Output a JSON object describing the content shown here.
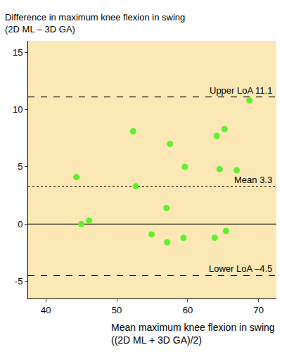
{
  "chart_data": {
    "type": "scatter",
    "x_label": "Mean maximum knee flexion in swing\n((2D ML + 3D GA)/2)",
    "y_label": "Difference in maximum knee flexion in swing\n(2D ML – 3D GA)",
    "x": [
      44.3,
      45.0,
      46.1,
      52.3,
      52.7,
      54.9,
      57.0,
      57.1,
      57.5,
      59.4,
      59.6,
      63.8,
      64.1,
      64.5,
      65.2,
      65.4,
      66.9,
      68.7
    ],
    "values": [
      4.1,
      0.0,
      0.3,
      8.1,
      3.3,
      -0.9,
      1.4,
      -1.6,
      7.0,
      -1.2,
      5.0,
      -1.2,
      7.7,
      4.8,
      8.3,
      -0.6,
      4.7,
      10.8
    ],
    "color": "#5ff02f",
    "marker": "circle",
    "xlim": [
      37.5,
      72.5
    ],
    "xticks": [
      40,
      50,
      60,
      70
    ],
    "ylim": [
      -6.5,
      16
    ],
    "yticks": [
      -5,
      0,
      5,
      10,
      15
    ],
    "grid": false,
    "reference_lines": [
      {
        "value": 11.1,
        "label": "Upper LoA 11.1",
        "line_style": "dash"
      },
      {
        "value": 3.3,
        "label": "Mean 3.3",
        "line_style": "dot"
      },
      {
        "value": 0,
        "line_style": "solid"
      },
      {
        "value": -4.5,
        "label": "Lower LoA –4.5",
        "line_style": "dash"
      }
    ]
  }
}
